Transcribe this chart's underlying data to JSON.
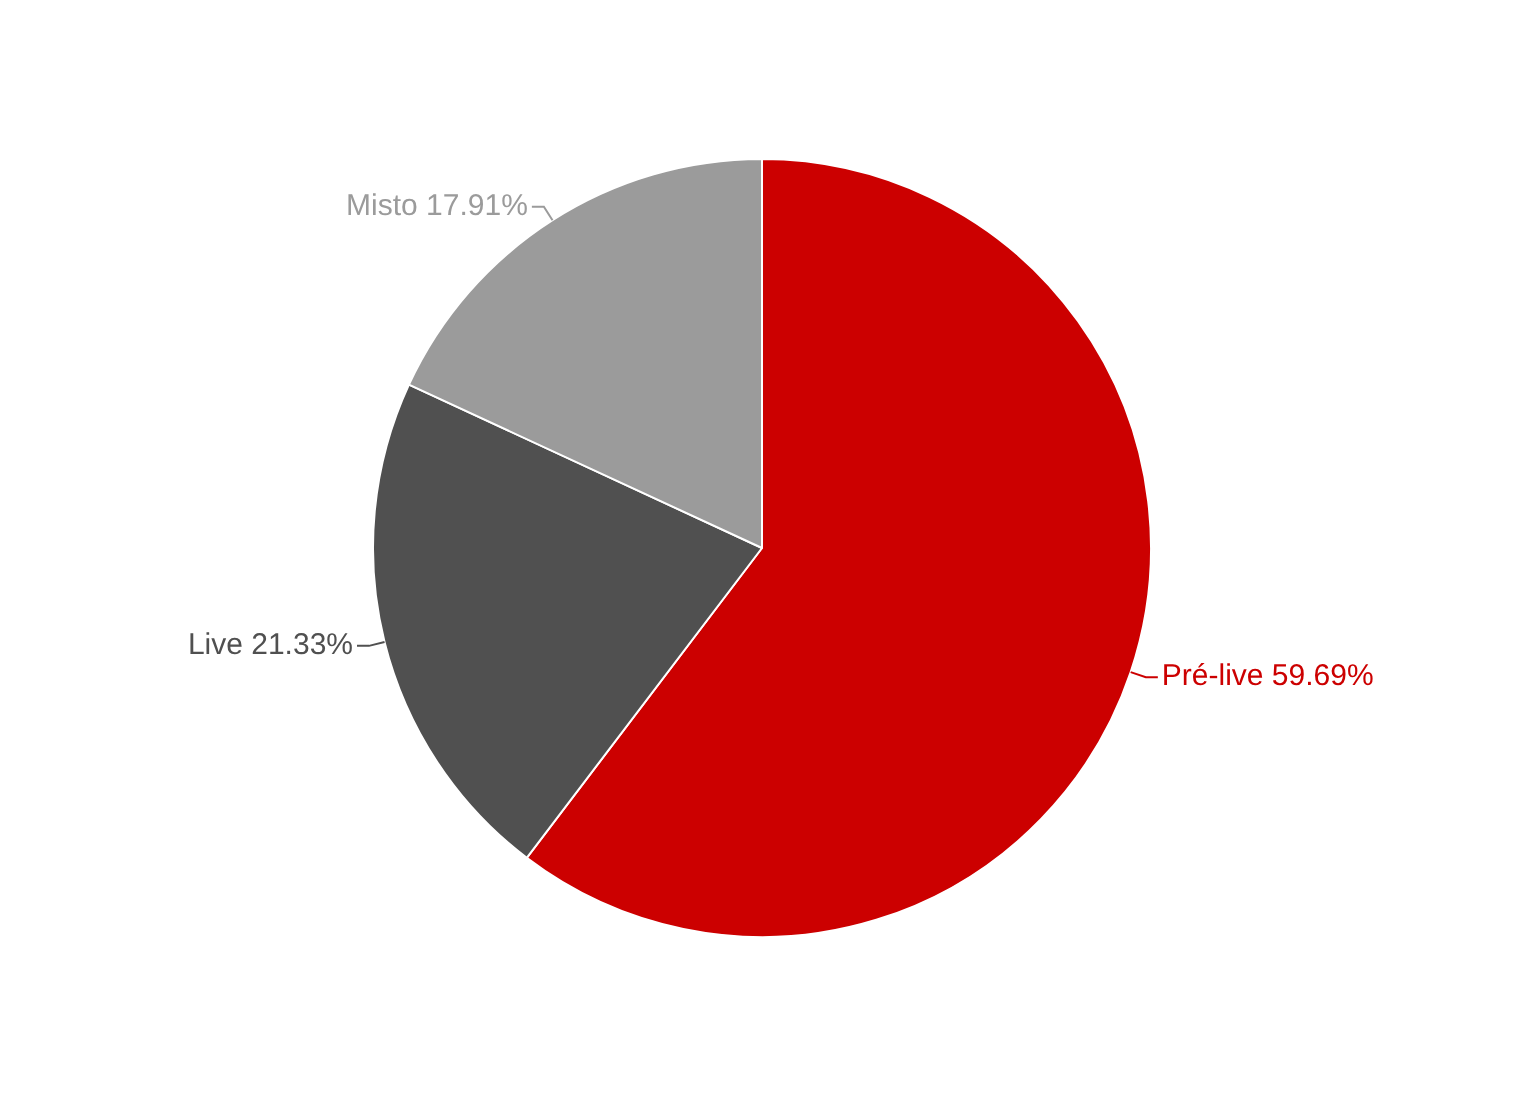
{
  "chart_data": {
    "type": "pie",
    "categories": [
      "Pré-live",
      "Live",
      "Misto"
    ],
    "values": [
      59.69,
      21.33,
      17.91
    ],
    "value_labels": [
      "59.69%",
      "21.33%",
      "17.91%"
    ],
    "colors": [
      "#cc0000",
      "#505050",
      "#9b9b9b"
    ],
    "legend": false
  }
}
